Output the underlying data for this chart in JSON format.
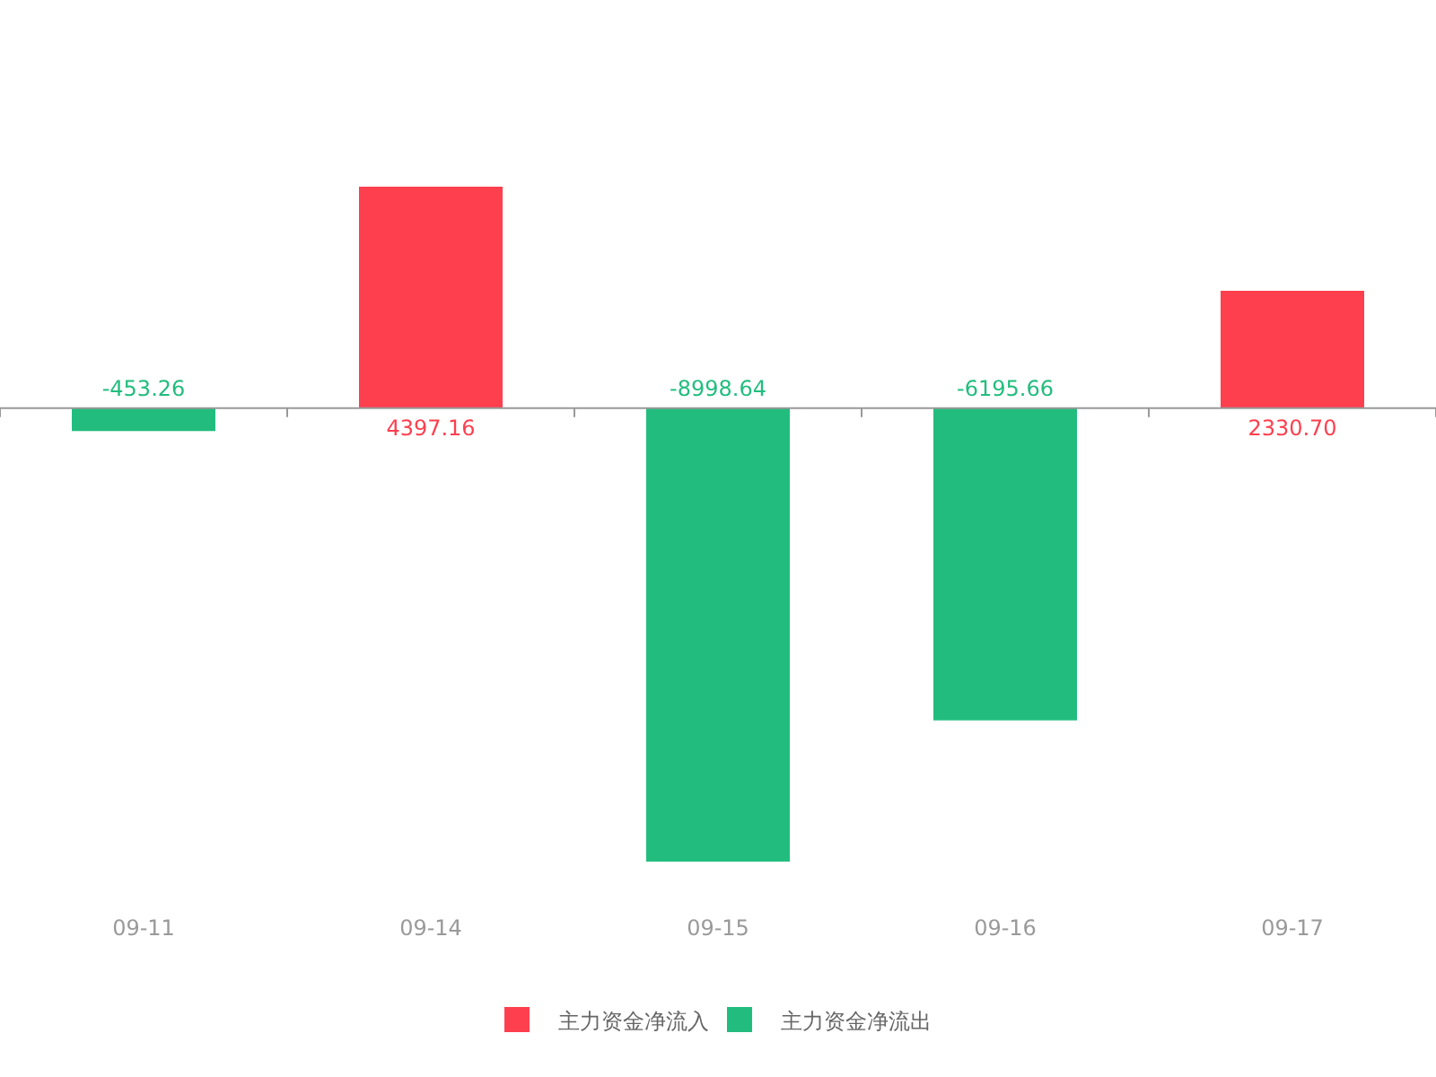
{
  "chart_data": {
    "type": "bar",
    "categories": [
      "09-11",
      "09-14",
      "09-15",
      "09-16",
      "09-17"
    ],
    "series": [
      {
        "name": "主力资金净流入",
        "color": "#fd3f4e",
        "values": [
          null,
          4397.16,
          null,
          null,
          2330.7
        ],
        "value_labels": [
          null,
          "4397.16",
          null,
          null,
          "2330.70"
        ]
      },
      {
        "name": "主力资金净流出",
        "color": "#22bd7e",
        "values": [
          -453.26,
          null,
          -8998.64,
          -6195.66,
          null
        ],
        "value_labels": [
          "-453.26",
          null,
          "-8998.64",
          "-6195.66",
          null
        ]
      }
    ],
    "legend": "bottom"
  }
}
